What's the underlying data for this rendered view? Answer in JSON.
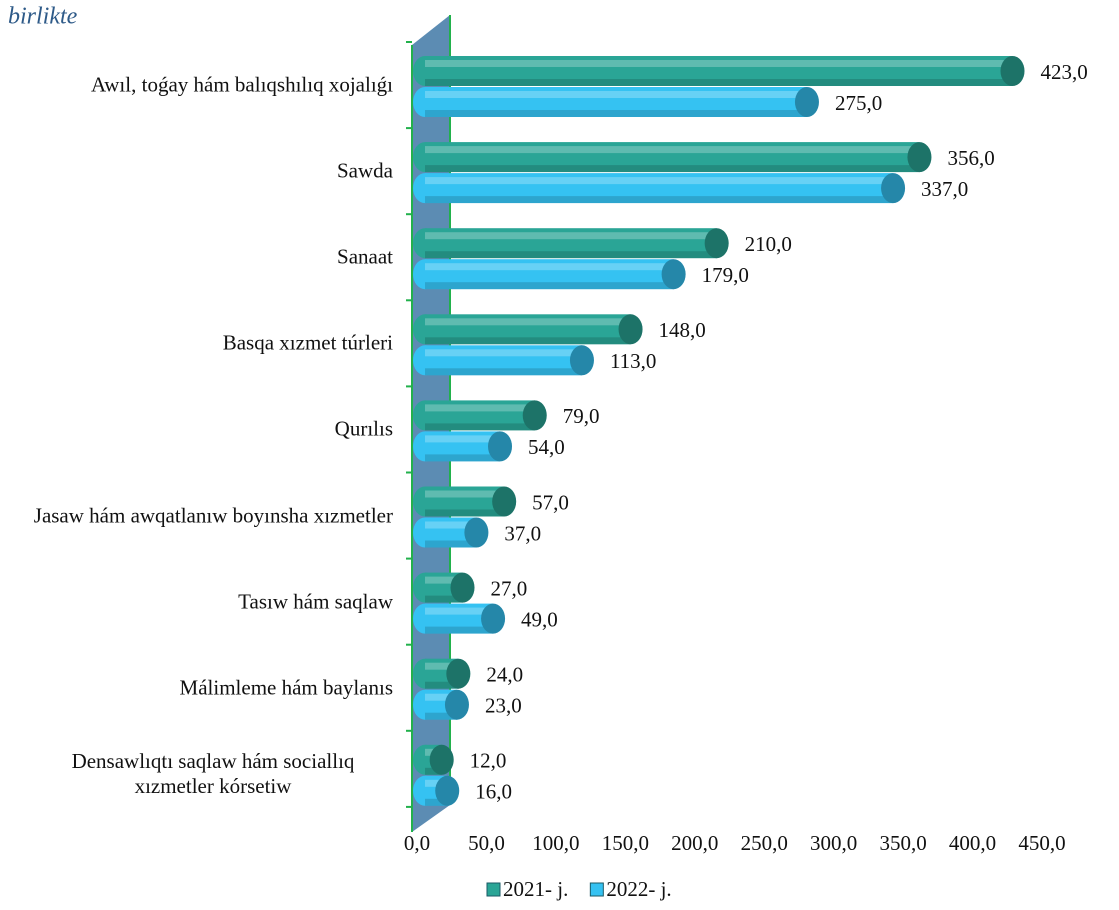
{
  "chart_data": {
    "type": "bar",
    "orientation": "horizontal",
    "title": "birlikte",
    "categories": [
      "Awıl, toǵay hám balıqshılıq xojalıǵı",
      "Sawda",
      "Sanaat",
      "Basqa xızmet túrleri",
      "Qurılıs",
      "Jasaw hám awqatlanıw boyınsha xızmetler",
      "Tasıw hám saqlaw",
      "Málimleme hám baylanıs",
      "Densawlıqtı saqlaw hám sociallıq xızmetler kórsetiw"
    ],
    "series": [
      {
        "name": "2021- j.",
        "color": "#2aa596",
        "values": [
          423,
          356,
          210,
          148,
          79,
          57,
          27,
          24,
          12
        ],
        "value_labels": [
          "423,0",
          "356,0",
          "210,0",
          "148,0",
          "79,0",
          "57,0",
          "27,0",
          "24,0",
          "12,0"
        ]
      },
      {
        "name": "2022- j.",
        "color": "#35c2f2",
        "values": [
          275,
          337,
          179,
          113,
          54,
          37,
          49,
          23,
          16
        ],
        "value_labels": [
          "275,0",
          "337,0",
          "179,0",
          "113,0",
          "54,0",
          "37,0",
          "49,0",
          "23,0",
          "16,0"
        ]
      }
    ],
    "xlim": [
      0,
      450
    ],
    "xticks": [
      {
        "value": 0,
        "label": "0,0"
      },
      {
        "value": 50,
        "label": "50,0"
      },
      {
        "value": 100,
        "label": "100,0"
      },
      {
        "value": 150,
        "label": "150,0"
      },
      {
        "value": 200,
        "label": "200,0"
      },
      {
        "value": 250,
        "label": "250,0"
      },
      {
        "value": 300,
        "label": "300,0"
      },
      {
        "value": 350,
        "label": "350,0"
      },
      {
        "value": 400,
        "label": "400,0"
      },
      {
        "value": 450,
        "label": "450,0"
      }
    ],
    "legend": "bottom"
  }
}
